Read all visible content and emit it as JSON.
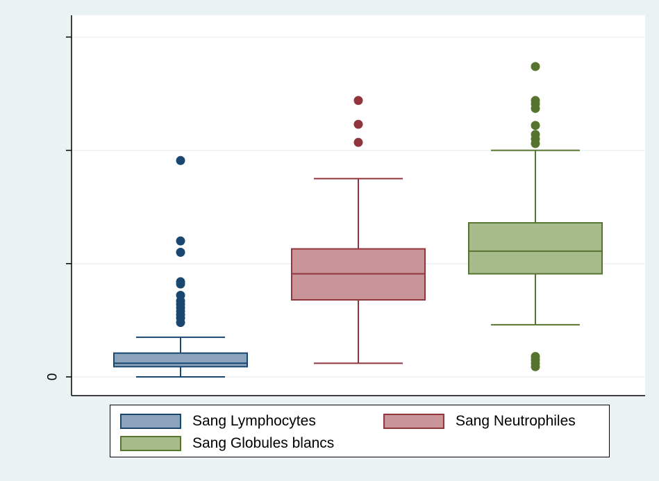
{
  "chart_data": {
    "type": "box",
    "ylim": [
      0,
      3
    ],
    "yticks": [
      {
        "value": 0,
        "label": "0"
      },
      {
        "value": 1,
        "label": ""
      },
      {
        "value": 2,
        "label": ""
      },
      {
        "value": 3,
        "label": ""
      }
    ],
    "grid": true,
    "legend_placement": "bottom",
    "series": [
      {
        "name": "Sang Lymphocytes",
        "fill": "#8ba3bb",
        "stroke": "#1a476f",
        "whisker_low": 0.0,
        "q1": 0.09,
        "median": 0.12,
        "q3": 0.21,
        "whisker_high": 0.35,
        "outliers": [
          0.48,
          0.52,
          0.55,
          0.58,
          0.61,
          0.64,
          0.67,
          0.72,
          0.82,
          0.84,
          1.1,
          1.2,
          1.91
        ]
      },
      {
        "name": "Sang Neutrophiles",
        "fill": "#c9959a",
        "stroke": "#90353b",
        "whisker_low": 0.12,
        "q1": 0.68,
        "median": 0.91,
        "q3": 1.13,
        "whisker_high": 1.75,
        "outliers": [
          2.07,
          2.23,
          2.44
        ]
      },
      {
        "name": "Sang Globules blancs",
        "fill": "#a8bb8d",
        "stroke": "#55752f",
        "whisker_low": 0.46,
        "q1": 0.91,
        "median": 1.11,
        "q3": 1.36,
        "whisker_high": 2.0,
        "outliers": [
          0.09,
          0.12,
          0.15,
          0.18,
          2.06,
          2.1,
          2.14,
          2.22,
          2.37,
          2.41,
          2.44,
          2.74
        ]
      }
    ]
  }
}
